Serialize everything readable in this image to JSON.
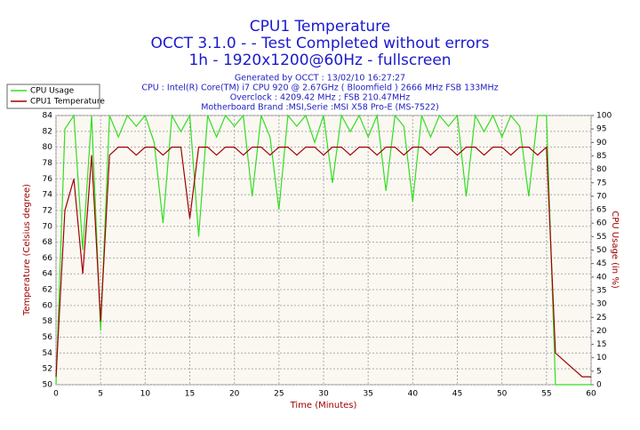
{
  "chart_data": {
    "type": "line",
    "title": "CPU1 Temperature",
    "subtitle": [
      "OCCT 3.1.0 -  - Test Completed without errors",
      "1h - 1920x1200@60Hz - fullscreen"
    ],
    "info": [
      "Generated by OCCT : 13/02/10 16:27:27",
      "CPU : Intel(R) Core(TM) i7 CPU 920 @ 2.67GHz ( Bloomfield ) 2666 MHz FSB 133MHz",
      "Overclock : 4209.42 MHz ; FSB 210.47MHz",
      "Motherboard Brand :MSI,Serie :MSI X58 Pro-E (MS-7522)"
    ],
    "xlabel": "Time (Minutes)",
    "ylabel": "Temperature (Celsius degree)",
    "y2label": "CPU Usage (in %)",
    "x": [
      0,
      1,
      2,
      3,
      4,
      5,
      6,
      7,
      8,
      9,
      10,
      11,
      12,
      13,
      14,
      15,
      16,
      17,
      18,
      19,
      20,
      21,
      22,
      23,
      24,
      25,
      26,
      27,
      28,
      29,
      30,
      31,
      32,
      33,
      34,
      35,
      36,
      37,
      38,
      39,
      40,
      41,
      42,
      43,
      44,
      45,
      46,
      47,
      48,
      49,
      50,
      51,
      52,
      53,
      54,
      55,
      56,
      57,
      58,
      59,
      60
    ],
    "series": [
      {
        "name": "CPU Usage",
        "color": "#33dd22",
        "axis": "y2",
        "values": [
          0,
          95,
          100,
          50,
          100,
          20,
          100,
          92,
          100,
          96,
          100,
          90,
          60,
          100,
          94,
          100,
          55,
          100,
          92,
          100,
          96,
          100,
          70,
          100,
          92,
          65,
          100,
          96,
          100,
          90,
          100,
          75,
          100,
          94,
          100,
          92,
          100,
          72,
          100,
          96,
          68,
          100,
          92,
          100,
          96,
          100,
          70,
          100,
          94,
          100,
          92,
          100,
          96,
          70,
          100,
          100,
          0,
          0,
          0,
          0,
          0
        ]
      },
      {
        "name": "CPU1 Temperature",
        "color": "#a00000",
        "values": [
          51,
          72,
          76,
          64,
          79,
          58,
          79,
          80,
          80,
          79,
          80,
          80,
          79,
          80,
          80,
          71,
          80,
          80,
          79,
          80,
          80,
          79,
          80,
          80,
          79,
          80,
          80,
          79,
          80,
          80,
          79,
          80,
          80,
          79,
          80,
          80,
          79,
          80,
          80,
          79,
          80,
          80,
          79,
          80,
          80,
          79,
          80,
          80,
          79,
          80,
          80,
          79,
          80,
          80,
          79,
          80,
          54,
          53,
          52,
          51,
          51
        ]
      }
    ],
    "xlim": [
      0,
      60
    ],
    "xticks": [
      0,
      5,
      10,
      15,
      20,
      25,
      30,
      35,
      40,
      45,
      50,
      55,
      60
    ],
    "ylim": [
      50,
      84
    ],
    "yticks": [
      50,
      52,
      54,
      56,
      58,
      60,
      62,
      64,
      66,
      68,
      70,
      72,
      74,
      76,
      78,
      80,
      82,
      84
    ],
    "y2lim": [
      0,
      100
    ],
    "y2ticks": [
      0,
      5,
      10,
      15,
      20,
      25,
      30,
      35,
      40,
      45,
      50,
      55,
      60,
      65,
      70,
      75,
      80,
      85,
      90,
      95,
      100
    ],
    "grid": true,
    "legend": "top-left"
  }
}
